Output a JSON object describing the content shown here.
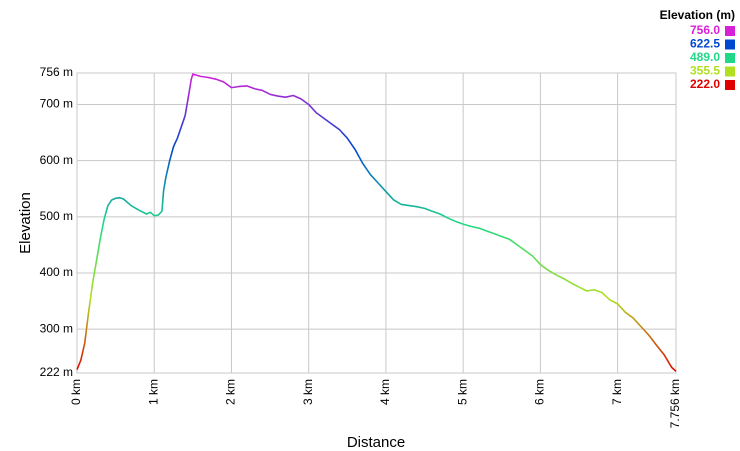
{
  "chart_data": {
    "type": "line",
    "x_label": "Distance",
    "y_label": "Elevation",
    "xlim": [
      0,
      7.756
    ],
    "ylim": [
      222,
      756
    ],
    "xticks": [
      {
        "value": 0,
        "label": "0 km"
      },
      {
        "value": 1,
        "label": "1 km"
      },
      {
        "value": 2,
        "label": "2 km"
      },
      {
        "value": 3,
        "label": "3 km"
      },
      {
        "value": 4,
        "label": "4 km"
      },
      {
        "value": 5,
        "label": "5 km"
      },
      {
        "value": 6,
        "label": "6 km"
      },
      {
        "value": 7,
        "label": "7 km"
      },
      {
        "value": 7.756,
        "label": "7.756 km"
      }
    ],
    "yticks": [
      {
        "value": 222,
        "label": "222 m"
      },
      {
        "value": 300,
        "label": "300 m"
      },
      {
        "value": 400,
        "label": "400 m"
      },
      {
        "value": 500,
        "label": "500 m"
      },
      {
        "value": 600,
        "label": "600 m"
      },
      {
        "value": 700,
        "label": "700 m"
      },
      {
        "value": 756,
        "label": "756 m"
      }
    ],
    "grid": true,
    "colorbar": {
      "title": "Elevation (m)",
      "stops": [
        {
          "value": 756,
          "label": "756.0",
          "color": "#d820d8"
        },
        {
          "value": 622.5,
          "label": "622.5",
          "color": "#0048d0"
        },
        {
          "value": 489,
          "label": "489.0",
          "color": "#20d888"
        },
        {
          "value": 355.5,
          "label": "355.5",
          "color": "#b0e020"
        },
        {
          "value": 222,
          "label": "222.0",
          "color": "#e00000"
        }
      ]
    },
    "x": [
      0,
      0.05,
      0.1,
      0.15,
      0.2,
      0.25,
      0.3,
      0.35,
      0.4,
      0.45,
      0.5,
      0.55,
      0.6,
      0.7,
      0.8,
      0.9,
      0.95,
      1.0,
      1.05,
      1.1,
      1.12,
      1.15,
      1.2,
      1.25,
      1.3,
      1.35,
      1.4,
      1.45,
      1.48,
      1.5,
      1.6,
      1.7,
      1.8,
      1.9,
      2.0,
      2.1,
      2.2,
      2.3,
      2.4,
      2.5,
      2.6,
      2.7,
      2.8,
      2.9,
      3.0,
      3.1,
      3.2,
      3.3,
      3.4,
      3.5,
      3.6,
      3.7,
      3.8,
      3.9,
      4.0,
      4.1,
      4.2,
      4.3,
      4.4,
      4.5,
      4.6,
      4.7,
      4.8,
      4.9,
      5.0,
      5.1,
      5.2,
      5.3,
      5.4,
      5.5,
      5.6,
      5.7,
      5.8,
      5.9,
      6.0,
      6.1,
      6.2,
      6.3,
      6.4,
      6.5,
      6.6,
      6.7,
      6.8,
      6.9,
      7.0,
      7.1,
      7.2,
      7.3,
      7.4,
      7.5,
      7.6,
      7.7,
      7.756
    ],
    "values": [
      228,
      245,
      275,
      330,
      380,
      420,
      460,
      495,
      520,
      530,
      533,
      534,
      532,
      520,
      512,
      505,
      508,
      502,
      503,
      510,
      545,
      570,
      600,
      625,
      640,
      660,
      680,
      720,
      745,
      754,
      750,
      748,
      745,
      740,
      730,
      732,
      733,
      728,
      725,
      718,
      715,
      713,
      716,
      710,
      700,
      685,
      675,
      665,
      655,
      640,
      620,
      595,
      575,
      560,
      545,
      530,
      522,
      520,
      518,
      515,
      510,
      505,
      498,
      492,
      487,
      483,
      480,
      475,
      470,
      465,
      460,
      450,
      440,
      430,
      415,
      405,
      397,
      390,
      382,
      375,
      368,
      370,
      365,
      352,
      345,
      330,
      320,
      305,
      290,
      272,
      255,
      232,
      225
    ]
  }
}
